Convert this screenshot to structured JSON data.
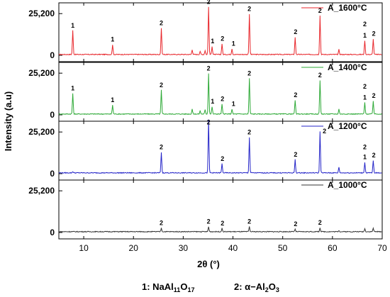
{
  "chart_data": {
    "type": "line",
    "xlabel": "2θ (°)",
    "ylabel": "Intensity (a.u)",
    "xlim": [
      5,
      70
    ],
    "x_ticks": [
      10,
      20,
      30,
      40,
      50,
      60,
      70
    ],
    "panel_ylim": [
      0,
      30000
    ],
    "y_tick_labels": [
      "25,200",
      "0"
    ],
    "y_tick_values": [
      25200,
      0
    ],
    "legend_position": "top-right",
    "grid": false,
    "panels": [
      {
        "name": "A_1600°C",
        "color": "#e8262b",
        "peaks": [
          {
            "x": 7.8,
            "y": 14500
          },
          {
            "x": 15.8,
            "y": 6000
          },
          {
            "x": 25.6,
            "y": 16000
          },
          {
            "x": 31.8,
            "y": 3000
          },
          {
            "x": 33.4,
            "y": 2000
          },
          {
            "x": 34.4,
            "y": 2500
          },
          {
            "x": 35.1,
            "y": 29000
          },
          {
            "x": 35.8,
            "y": 5000
          },
          {
            "x": 37.8,
            "y": 6500
          },
          {
            "x": 39.8,
            "y": 3500
          },
          {
            "x": 43.3,
            "y": 24500
          },
          {
            "x": 52.5,
            "y": 10500
          },
          {
            "x": 57.5,
            "y": 23500
          },
          {
            "x": 61.3,
            "y": 3000
          },
          {
            "x": 66.5,
            "y": 8500
          },
          {
            "x": 68.2,
            "y": 9500
          }
        ],
        "labels": [
          {
            "x": 7.8,
            "y": 16800,
            "text": "1"
          },
          {
            "x": 15.8,
            "y": 8300,
            "text": "1"
          },
          {
            "x": 25.6,
            "y": 18300,
            "text": "2"
          },
          {
            "x": 35.1,
            "y": 31000,
            "text": "2"
          },
          {
            "x": 35.9,
            "y": 7300,
            "text": "1"
          },
          {
            "x": 37.9,
            "y": 8800,
            "text": "2"
          },
          {
            "x": 40.1,
            "y": 5800,
            "text": "1"
          },
          {
            "x": 43.3,
            "y": 26800,
            "text": "2"
          },
          {
            "x": 52.6,
            "y": 12800,
            "text": "2"
          },
          {
            "x": 57.5,
            "y": 25800,
            "text": "2"
          },
          {
            "x": 66.5,
            "y": 17500,
            "text": "2"
          },
          {
            "x": 66.5,
            "y": 10800,
            "text": "1"
          },
          {
            "x": 68.3,
            "y": 11800,
            "text": "2"
          }
        ]
      },
      {
        "name": "A_1400°C",
        "color": "#2da936",
        "peaks": [
          {
            "x": 7.8,
            "y": 12500
          },
          {
            "x": 15.8,
            "y": 5500
          },
          {
            "x": 25.6,
            "y": 14500
          },
          {
            "x": 31.8,
            "y": 3000
          },
          {
            "x": 33.4,
            "y": 2000
          },
          {
            "x": 34.4,
            "y": 2500
          },
          {
            "x": 35.1,
            "y": 24500
          },
          {
            "x": 35.8,
            "y": 4500
          },
          {
            "x": 37.8,
            "y": 6000
          },
          {
            "x": 39.8,
            "y": 3000
          },
          {
            "x": 43.3,
            "y": 21500
          },
          {
            "x": 52.5,
            "y": 8500
          },
          {
            "x": 57.5,
            "y": 20500
          },
          {
            "x": 61.3,
            "y": 3000
          },
          {
            "x": 66.5,
            "y": 7000
          },
          {
            "x": 68.2,
            "y": 8000
          }
        ],
        "labels": [
          {
            "x": 7.8,
            "y": 14800,
            "text": "1"
          },
          {
            "x": 15.8,
            "y": 7800,
            "text": "1"
          },
          {
            "x": 25.6,
            "y": 16800,
            "text": "2"
          },
          {
            "x": 35.1,
            "y": 26800,
            "text": "2"
          },
          {
            "x": 35.9,
            "y": 6800,
            "text": "1"
          },
          {
            "x": 37.9,
            "y": 8300,
            "text": "2"
          },
          {
            "x": 40.1,
            "y": 5300,
            "text": "1"
          },
          {
            "x": 43.3,
            "y": 23800,
            "text": "2"
          },
          {
            "x": 52.6,
            "y": 10800,
            "text": "2"
          },
          {
            "x": 57.5,
            "y": 22800,
            "text": "2"
          },
          {
            "x": 66.5,
            "y": 15800,
            "text": "2"
          },
          {
            "x": 66.5,
            "y": 9300,
            "text": "1"
          },
          {
            "x": 68.3,
            "y": 10300,
            "text": "2"
          }
        ]
      },
      {
        "name": "A_1200°C",
        "color": "#2424c8",
        "peaks": [
          {
            "x": 7.8,
            "y": 800
          },
          {
            "x": 25.6,
            "y": 12500
          },
          {
            "x": 35.1,
            "y": 32000
          },
          {
            "x": 37.8,
            "y": 5500
          },
          {
            "x": 43.3,
            "y": 21500
          },
          {
            "x": 52.5,
            "y": 8000
          },
          {
            "x": 57.5,
            "y": 25000
          },
          {
            "x": 61.3,
            "y": 3500
          },
          {
            "x": 66.5,
            "y": 6500
          },
          {
            "x": 68.2,
            "y": 7500
          }
        ],
        "labels": [
          {
            "x": 25.6,
            "y": 14800,
            "text": "2"
          },
          {
            "x": 35.1,
            "y": 29800,
            "text": "2"
          },
          {
            "x": 37.9,
            "y": 7800,
            "text": "2"
          },
          {
            "x": 43.3,
            "y": 23800,
            "text": "2"
          },
          {
            "x": 52.6,
            "y": 10300,
            "text": "2"
          },
          {
            "x": 58.4,
            "y": 24500,
            "text": "2"
          },
          {
            "x": 66.5,
            "y": 14800,
            "text": "2"
          },
          {
            "x": 66.5,
            "y": 8800,
            "text": "1"
          },
          {
            "x": 68.3,
            "y": 9800,
            "text": "2"
          }
        ]
      },
      {
        "name": "A_1000°C",
        "color": "#333333",
        "peaks": [
          {
            "x": 25.6,
            "y": 2200
          },
          {
            "x": 35.1,
            "y": 3000
          },
          {
            "x": 37.8,
            "y": 2000
          },
          {
            "x": 43.3,
            "y": 3000
          },
          {
            "x": 52.5,
            "y": 1500
          },
          {
            "x": 57.5,
            "y": 2500
          },
          {
            "x": 61.3,
            "y": 800
          },
          {
            "x": 66.5,
            "y": 1800
          },
          {
            "x": 68.2,
            "y": 2200
          }
        ],
        "labels": [
          {
            "x": 25.6,
            "y": 4500,
            "text": "2"
          },
          {
            "x": 35.1,
            "y": 5300,
            "text": "2"
          },
          {
            "x": 37.9,
            "y": 4300,
            "text": "2"
          },
          {
            "x": 43.3,
            "y": 5300,
            "text": "2"
          },
          {
            "x": 52.6,
            "y": 3800,
            "text": "2"
          },
          {
            "x": 57.5,
            "y": 4800,
            "text": "2"
          }
        ]
      }
    ],
    "footnote": {
      "item1_prefix": "1: NaAl",
      "item1_sub1": "11",
      "item1_mid": "O",
      "item1_sub2": "17",
      "item2_prefix": "2: α−Al",
      "item2_sub1": "2",
      "item2_mid": "O",
      "item2_sub2": "3"
    }
  }
}
